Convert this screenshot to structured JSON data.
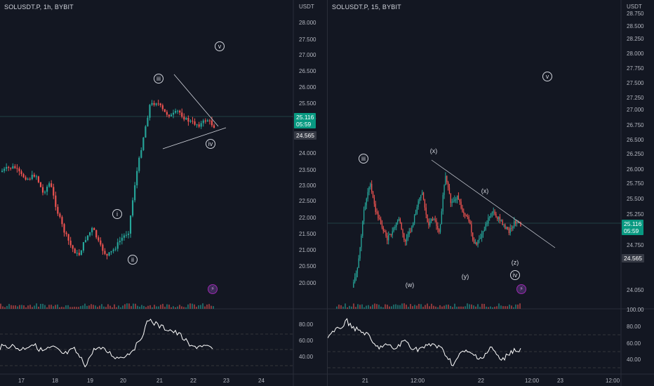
{
  "colors": {
    "background": "#131722",
    "up": "#26a69a",
    "down": "#ef5350",
    "rsi_line": "#ffffff",
    "last_price_bg": "#089981",
    "prev_price_bg": "#363a45"
  },
  "left_chart": {
    "symbol": "SOLUSDT.P, 1h, BYBIT",
    "currency": "USDT",
    "price_ticks": [
      "28.000",
      "27.500",
      "27.000",
      "26.500",
      "26.000",
      "25.500",
      "25.000",
      "24.000",
      "23.500",
      "23.000",
      "22.500",
      "22.000",
      "21.500",
      "21.000",
      "20.500",
      "20.000"
    ],
    "last_price": "25.116",
    "countdown": "05:59",
    "prev_price": "24.565",
    "time_ticks": [
      "17",
      "18",
      "19",
      "20",
      "21",
      "22",
      "23",
      "24"
    ],
    "rsi_ticks": [
      "80.00",
      "60.00",
      "40.00"
    ],
    "wave_labels": [
      "i",
      "ii",
      "iii",
      "iv",
      "v"
    ],
    "indicator_icon": "lightning-icon"
  },
  "right_chart": {
    "symbol": "SOLUSDT.P, 15, BYBIT",
    "currency": "USDT",
    "price_ticks": [
      "28.750",
      "28.500",
      "28.250",
      "28.000",
      "27.750",
      "27.500",
      "27.250",
      "27.000",
      "26.750",
      "26.500",
      "26.250",
      "26.000",
      "25.750",
      "25.500",
      "25.250",
      "24.750",
      "24.050"
    ],
    "last_price": "25.116",
    "countdown": "05:59",
    "prev_price": "24.565",
    "time_ticks": [
      "21",
      "12:00",
      "22",
      "12:00",
      "23",
      "12:00"
    ],
    "rsi_ticks": [
      "100.00",
      "80.00",
      "60.00",
      "40.00"
    ],
    "wave_labels": [
      "iii",
      "(x)",
      "(w)",
      "(x)",
      "(y)",
      "(z)",
      "iv",
      "v"
    ],
    "indicator_icon": "lightning-icon"
  }
}
